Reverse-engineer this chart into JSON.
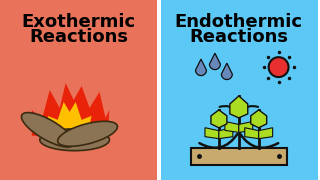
{
  "left_bg": "#E8735A",
  "right_bg": "#5BC8F5",
  "divider_color": "#ffffff",
  "left_title_line1": "Exothermic",
  "left_title_line2": "Reactions",
  "right_title_line1": "Endothermic",
  "right_title_line2": "Reactions",
  "title_fontsize": 13,
  "title_fontweight": "bold",
  "title_color": "#000000",
  "fire_red": "#E8230A",
  "fire_yellow": "#FFC000",
  "log_color": "#8B7355",
  "log_edge": "#3a2a10",
  "leaf_color": "#AADD22",
  "sun_color": "#E83030",
  "drop_color": "#6688BB",
  "pot_color": "#C8A96E",
  "black": "#111111"
}
